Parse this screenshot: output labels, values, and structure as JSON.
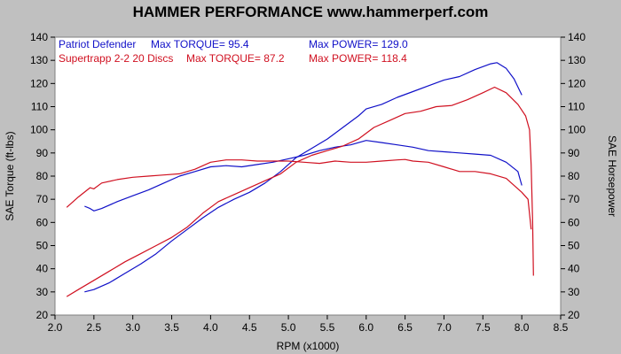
{
  "chart_data": {
    "type": "line",
    "title": "HAMMER PERFORMANCE www.hammerperf.com",
    "xlabel": "RPM (x1000)",
    "ylabel_left": "SAE Torque (ft-lbs)",
    "ylabel_right": "SAE Horsepower",
    "xlim": [
      2.0,
      8.5
    ],
    "ylim": [
      20,
      140
    ],
    "x_ticks": [
      "2.0",
      "2.5",
      "3.0",
      "3.5",
      "4.0",
      "4.5",
      "5.0",
      "5.5",
      "6.0",
      "6.5",
      "7.0",
      "7.5",
      "8.0",
      "8.5"
    ],
    "y_ticks": [
      "20",
      "30",
      "40",
      "50",
      "60",
      "70",
      "80",
      "90",
      "100",
      "110",
      "120",
      "130",
      "140"
    ],
    "grid": false,
    "legend": [
      {
        "name": "Patriot Defender",
        "torque_label": "Max TORQUE= 95.4",
        "power_label": "Max POWER= 129.0",
        "color": "#1010c8"
      },
      {
        "name": "Supertrapp 2-2 20 Discs",
        "torque_label": "Max TORQUE= 87.2",
        "power_label": "Max POWER= 118.4",
        "color": "#d01020"
      }
    ],
    "series": [
      {
        "name": "Patriot Defender",
        "color": "#1010c8",
        "torque": [
          [
            2.38,
            67
          ],
          [
            2.45,
            66
          ],
          [
            2.5,
            65
          ],
          [
            2.6,
            66
          ],
          [
            2.8,
            69
          ],
          [
            3.0,
            71.5
          ],
          [
            3.2,
            74
          ],
          [
            3.4,
            77
          ],
          [
            3.6,
            80
          ],
          [
            3.8,
            82
          ],
          [
            4.0,
            84
          ],
          [
            4.2,
            84.5
          ],
          [
            4.4,
            84
          ],
          [
            4.6,
            85
          ],
          [
            4.8,
            86
          ],
          [
            5.0,
            87.5
          ],
          [
            5.2,
            89
          ],
          [
            5.4,
            91
          ],
          [
            5.6,
            92.5
          ],
          [
            5.8,
            93.5
          ],
          [
            6.0,
            95.4
          ],
          [
            6.2,
            94.5
          ],
          [
            6.4,
            93.5
          ],
          [
            6.6,
            92.5
          ],
          [
            6.8,
            91
          ],
          [
            7.0,
            90.5
          ],
          [
            7.2,
            90
          ],
          [
            7.4,
            89.5
          ],
          [
            7.6,
            89
          ],
          [
            7.8,
            86
          ],
          [
            7.95,
            82
          ],
          [
            8.0,
            76
          ]
        ],
        "power": [
          [
            2.38,
            30
          ],
          [
            2.5,
            31
          ],
          [
            2.7,
            34
          ],
          [
            2.9,
            38
          ],
          [
            3.1,
            42
          ],
          [
            3.3,
            46.5
          ],
          [
            3.5,
            52
          ],
          [
            3.7,
            57
          ],
          [
            3.9,
            62
          ],
          [
            4.1,
            66.5
          ],
          [
            4.3,
            70
          ],
          [
            4.5,
            73
          ],
          [
            4.7,
            77
          ],
          [
            4.9,
            82
          ],
          [
            5.1,
            88
          ],
          [
            5.3,
            92
          ],
          [
            5.5,
            96
          ],
          [
            5.7,
            101
          ],
          [
            5.9,
            106
          ],
          [
            6.0,
            109
          ],
          [
            6.2,
            111
          ],
          [
            6.4,
            114
          ],
          [
            6.6,
            116.5
          ],
          [
            6.8,
            119
          ],
          [
            7.0,
            121.5
          ],
          [
            7.2,
            123
          ],
          [
            7.4,
            126
          ],
          [
            7.6,
            128.5
          ],
          [
            7.68,
            129.0
          ],
          [
            7.8,
            126.5
          ],
          [
            7.9,
            122
          ],
          [
            8.0,
            115
          ]
        ]
      },
      {
        "name": "Supertrapp 2-2 20 Discs",
        "color": "#d01020",
        "torque": [
          [
            2.15,
            66.5
          ],
          [
            2.3,
            71
          ],
          [
            2.45,
            75
          ],
          [
            2.5,
            74.5
          ],
          [
            2.6,
            77
          ],
          [
            2.8,
            78.5
          ],
          [
            3.0,
            79.5
          ],
          [
            3.2,
            80
          ],
          [
            3.4,
            80.5
          ],
          [
            3.6,
            81
          ],
          [
            3.8,
            83
          ],
          [
            4.0,
            86
          ],
          [
            4.2,
            87
          ],
          [
            4.4,
            87
          ],
          [
            4.6,
            86.5
          ],
          [
            4.8,
            86.5
          ],
          [
            5.0,
            86.5
          ],
          [
            5.2,
            86
          ],
          [
            5.4,
            85.5
          ],
          [
            5.6,
            86.5
          ],
          [
            5.8,
            86
          ],
          [
            6.0,
            86
          ],
          [
            6.2,
            86.5
          ],
          [
            6.4,
            87
          ],
          [
            6.5,
            87.2
          ],
          [
            6.6,
            86.5
          ],
          [
            6.8,
            86
          ],
          [
            7.0,
            84
          ],
          [
            7.2,
            82
          ],
          [
            7.4,
            82
          ],
          [
            7.6,
            81
          ],
          [
            7.8,
            79
          ],
          [
            8.0,
            73
          ],
          [
            8.08,
            70
          ],
          [
            8.12,
            57
          ]
        ],
        "power": [
          [
            2.15,
            28
          ],
          [
            2.3,
            31
          ],
          [
            2.5,
            35
          ],
          [
            2.7,
            39
          ],
          [
            2.9,
            43
          ],
          [
            3.1,
            46.5
          ],
          [
            3.3,
            50
          ],
          [
            3.5,
            53.5
          ],
          [
            3.7,
            58
          ],
          [
            3.9,
            64
          ],
          [
            4.1,
            69
          ],
          [
            4.3,
            72
          ],
          [
            4.5,
            75
          ],
          [
            4.7,
            78
          ],
          [
            4.9,
            81
          ],
          [
            5.1,
            86
          ],
          [
            5.3,
            89
          ],
          [
            5.5,
            91
          ],
          [
            5.7,
            93
          ],
          [
            5.9,
            96
          ],
          [
            6.1,
            101
          ],
          [
            6.3,
            104
          ],
          [
            6.5,
            107
          ],
          [
            6.7,
            108
          ],
          [
            6.9,
            110
          ],
          [
            7.1,
            110.5
          ],
          [
            7.3,
            113
          ],
          [
            7.5,
            116
          ],
          [
            7.65,
            118.4
          ],
          [
            7.8,
            116
          ],
          [
            7.95,
            111
          ],
          [
            8.05,
            106
          ],
          [
            8.1,
            100
          ],
          [
            8.12,
            85
          ],
          [
            8.14,
            60
          ],
          [
            8.15,
            37
          ]
        ]
      }
    ]
  }
}
